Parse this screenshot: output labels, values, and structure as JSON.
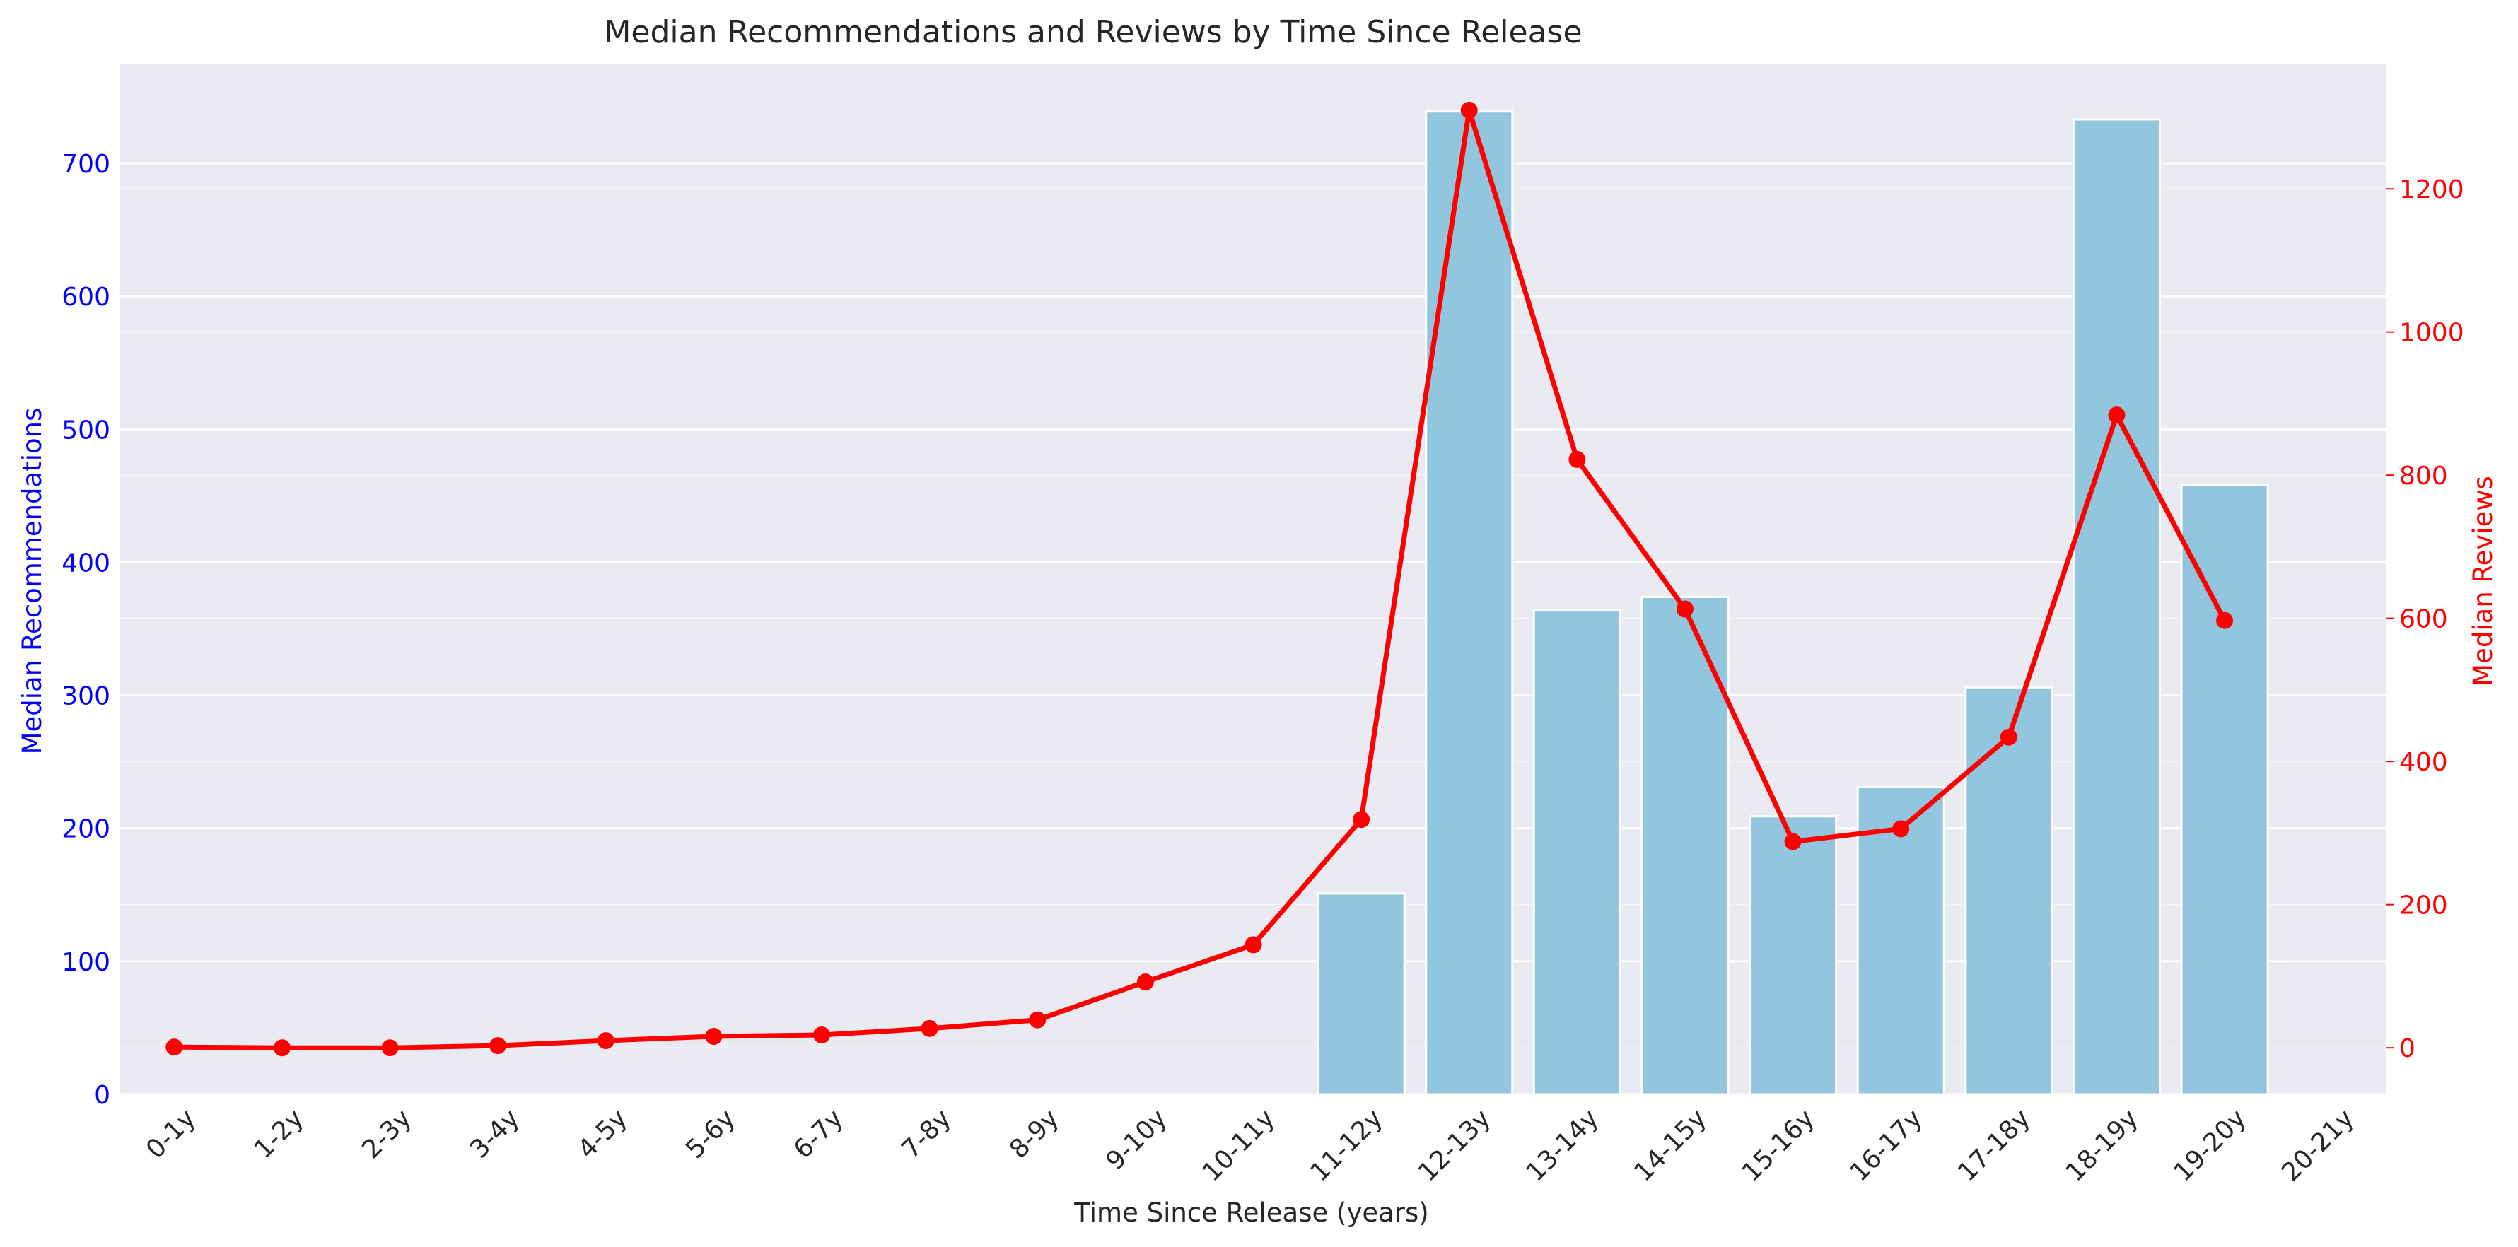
{
  "chart_data": {
    "type": "bar+line",
    "title": "Median Recommendations and Reviews by Time Since Release",
    "xlabel": "Time Since Release (years)",
    "categories": [
      "0-1y",
      "1-2y",
      "2-3y",
      "3-4y",
      "4-5y",
      "5-6y",
      "6-7y",
      "7-8y",
      "8-9y",
      "9-10y",
      "10-11y",
      "11-12y",
      "12-13y",
      "13-14y",
      "14-15y",
      "15-16y",
      "16-17y",
      "17-18y",
      "18-19y",
      "19-20y",
      "20-21y"
    ],
    "left_axis": {
      "label": "Median Recommendations",
      "ylim": [
        0,
        775
      ],
      "ticks": [
        0,
        100,
        200,
        300,
        400,
        500,
        600,
        700
      ],
      "color": "#0000ff"
    },
    "right_axis": {
      "label": "Median Reviews",
      "ylim": [
        -65,
        1375
      ],
      "ticks": [
        0,
        200,
        400,
        600,
        800,
        1000,
        1200
      ],
      "color": "#ff0000"
    },
    "series": [
      {
        "kind": "bar",
        "axis": "left",
        "color": "#92c5de",
        "values": [
          0,
          0,
          0,
          0,
          0,
          0,
          0,
          0,
          0,
          0,
          0,
          151,
          739,
          364,
          374,
          209,
          231,
          306,
          733,
          458,
          null
        ]
      },
      {
        "kind": "line",
        "axis": "right",
        "color": "#ff0000",
        "values": [
          1,
          0,
          0,
          3,
          10,
          16,
          18,
          27,
          39,
          92,
          144,
          319,
          1310,
          822,
          613,
          288,
          306,
          434,
          884,
          597,
          null
        ]
      }
    ],
    "grid": true,
    "background": "#eaeaf2"
  }
}
